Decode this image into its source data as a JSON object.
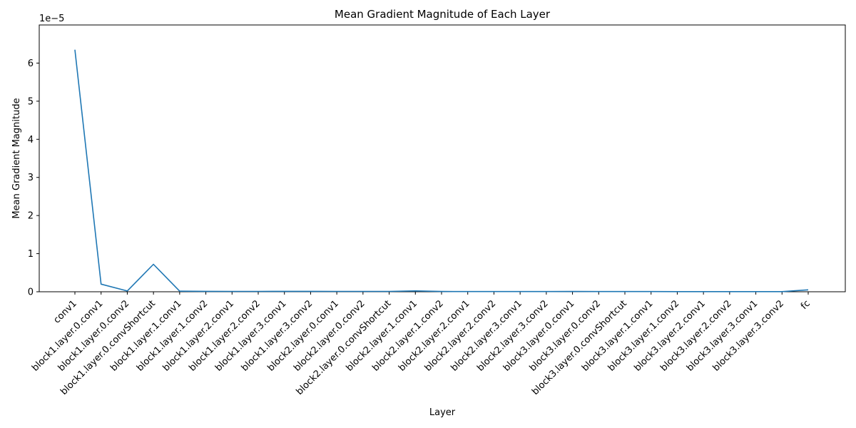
{
  "chart_data": {
    "type": "line",
    "title": "Mean Gradient Magnitude of Each Layer",
    "xlabel": "Layer",
    "ylabel": "Mean Gradient Magnitude",
    "y_offset_label": "1e−5",
    "y_scale_exponent": -5,
    "ylim": [
      0,
      7e-05
    ],
    "yticks": [
      0,
      1e-05,
      2e-05,
      3e-05,
      4e-05,
      5e-05,
      6e-05
    ],
    "ytick_labels": [
      "0",
      "1",
      "2",
      "3",
      "4",
      "5",
      "6"
    ],
    "grid": false,
    "legend": "none",
    "series_color": "#1f77b4",
    "categories": [
      "conv1",
      "block1.layer.0.conv1",
      "block1.layer.0.conv2",
      "block1.layer.0.convShortcut",
      "block1.layer.1.conv1",
      "block1.layer.1.conv2",
      "block1.layer.2.conv1",
      "block1.layer.2.conv2",
      "block1.layer.3.conv1",
      "block1.layer.3.conv2",
      "block2.layer.0.conv1",
      "block2.layer.0.conv2",
      "block2.layer.0.convShortcut",
      "block2.layer.1.conv1",
      "block2.layer.1.conv2",
      "block2.layer.2.conv1",
      "block2.layer.2.conv2",
      "block2.layer.3.conv1",
      "block2.layer.3.conv2",
      "block3.layer.0.conv1",
      "block3.layer.0.conv2",
      "block3.layer.0.convShortcut",
      "block3.layer.1.conv1",
      "block3.layer.1.conv2",
      "block3.layer.2.conv1",
      "block3.layer.2.conv2",
      "block3.layer.3.conv1",
      "block3.layer.3.conv2",
      "fc"
    ],
    "values": [
      6.35e-05,
      2e-06,
      2e-07,
      7.2e-06,
      1.5e-07,
      1.2e-07,
      1e-07,
      1e-07,
      1.2e-07,
      1.1e-07,
      1e-07,
      1e-07,
      9e-08,
      2.2e-07,
      7e-08,
      6e-08,
      6e-08,
      6e-08,
      5e-08,
      7e-08,
      6e-08,
      6e-08,
      5e-08,
      4e-08,
      4e-08,
      4e-08,
      4e-08,
      4e-08,
      5e-07
    ]
  }
}
